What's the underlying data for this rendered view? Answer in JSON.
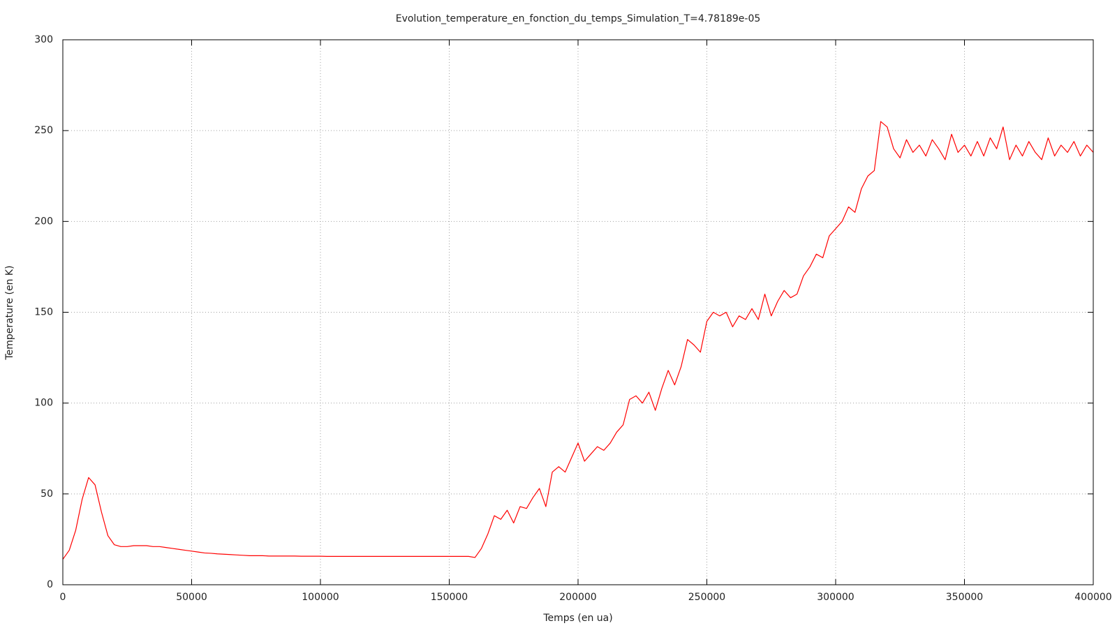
{
  "chart_data": {
    "type": "line",
    "title": "Evolution_temperature_en_fonction_du_temps_Simulation_T=4.78189e-05",
    "x_label": "Temps (en ua)",
    "y_label": "Temperature (en K)",
    "x": [
      0,
      2500,
      5000,
      7500,
      10000,
      12500,
      15000,
      17500,
      20000,
      22500,
      25000,
      27500,
      30000,
      32500,
      35000,
      37500,
      40000,
      42500,
      45000,
      47500,
      50000,
      52500,
      55000,
      57500,
      60000,
      62500,
      65000,
      67500,
      70000,
      72500,
      75000,
      77500,
      80000,
      82500,
      85000,
      87500,
      90000,
      92500,
      95000,
      97500,
      100000,
      102500,
      105000,
      107500,
      110000,
      112500,
      115000,
      117500,
      120000,
      122500,
      125000,
      127500,
      130000,
      132500,
      135000,
      137500,
      140000,
      142500,
      145000,
      147500,
      150000,
      152500,
      155000,
      157500,
      160000,
      162500,
      165000,
      167500,
      170000,
      172500,
      175000,
      177500,
      180000,
      182500,
      185000,
      187500,
      190000,
      192500,
      195000,
      197500,
      200000,
      202500,
      205000,
      207500,
      210000,
      212500,
      215000,
      217500,
      220000,
      222500,
      225000,
      227500,
      230000,
      232500,
      235000,
      237500,
      240000,
      242500,
      245000,
      247500,
      250000,
      252500,
      255000,
      257500,
      260000,
      262500,
      265000,
      267500,
      270000,
      272500,
      275000,
      277500,
      280000,
      282500,
      285000,
      287500,
      290000,
      292500,
      295000,
      297500,
      300000,
      302500,
      305000,
      307500,
      310000,
      312500,
      315000,
      317500,
      320000,
      322500,
      325000,
      327500,
      330000,
      332500,
      335000,
      337500,
      340000,
      342500,
      345000,
      347500,
      350000,
      352500,
      355000,
      357500,
      360000,
      362500,
      365000,
      367500,
      370000,
      372500,
      375000,
      377500,
      380000,
      382500,
      385000,
      387500,
      390000,
      392500,
      395000,
      397500,
      400000
    ],
    "series": [
      {
        "color": "#ff0000",
        "values": [
          14,
          19,
          30,
          47,
          59,
          55,
          40,
          27,
          22,
          21,
          21,
          21.5,
          21.5,
          21.5,
          21,
          21,
          20.5,
          20,
          19.5,
          19,
          18.5,
          18,
          17.5,
          17.3,
          17,
          16.8,
          16.6,
          16.4,
          16.2,
          16,
          16,
          16,
          15.8,
          15.8,
          15.8,
          15.8,
          15.8,
          15.7,
          15.7,
          15.7,
          15.7,
          15.6,
          15.6,
          15.6,
          15.6,
          15.6,
          15.6,
          15.6,
          15.6,
          15.6,
          15.6,
          15.6,
          15.6,
          15.6,
          15.6,
          15.6,
          15.6,
          15.6,
          15.6,
          15.6,
          15.6,
          15.6,
          15.6,
          15.6,
          15,
          20,
          28,
          38,
          36,
          41,
          34,
          43,
          42,
          48,
          53,
          43,
          62,
          65,
          62,
          70,
          78,
          68,
          72,
          76,
          74,
          78,
          84,
          88,
          102,
          104,
          100,
          106,
          96,
          108,
          118,
          110,
          120,
          135,
          132,
          128,
          145,
          150,
          148,
          150,
          142,
          148,
          146,
          152,
          146,
          160,
          148,
          156,
          162,
          158,
          160,
          170,
          175,
          182,
          180,
          192,
          196,
          200,
          208,
          205,
          218,
          225,
          228,
          255,
          252,
          240,
          235,
          245,
          238,
          242,
          236,
          245,
          240,
          234,
          248,
          238,
          242,
          236,
          244,
          236,
          246,
          240,
          252,
          234,
          242,
          236,
          244,
          238,
          234,
          246,
          236,
          242,
          238,
          244,
          236,
          242,
          238
        ]
      }
    ],
    "xlim": [
      0,
      400000
    ],
    "xticks": [
      0,
      50000,
      100000,
      150000,
      200000,
      250000,
      300000,
      350000,
      400000
    ],
    "ylim": [
      0,
      300
    ],
    "yticks": [
      0,
      50,
      100,
      150,
      200,
      250,
      300
    ],
    "grid": true
  }
}
